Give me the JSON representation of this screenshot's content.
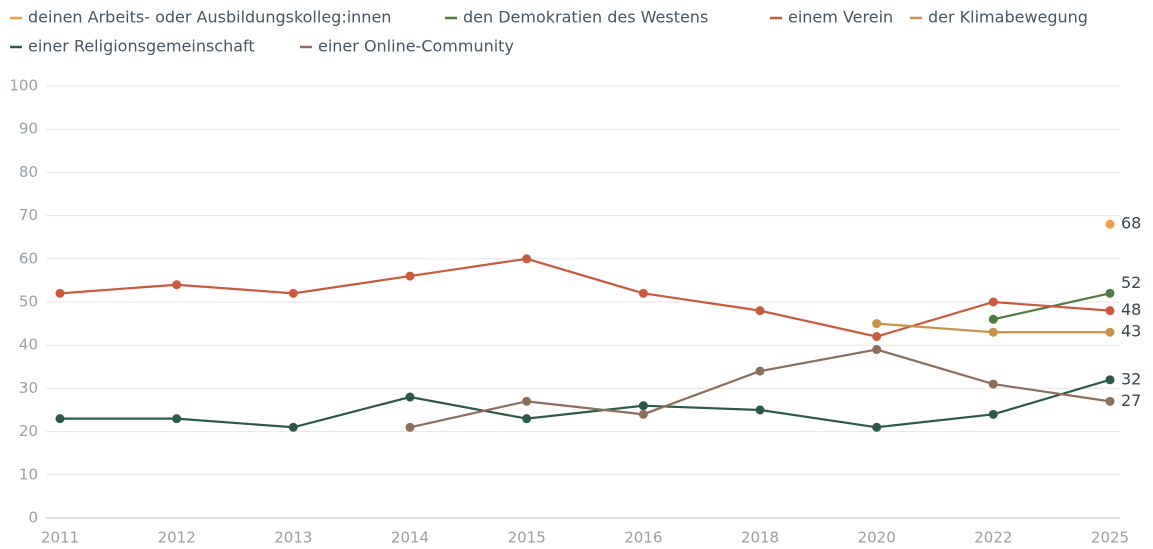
{
  "chart_data": {
    "type": "line",
    "categories": [
      "2011",
      "2012",
      "2013",
      "2014",
      "2015",
      "2016",
      "2018",
      "2020",
      "2022",
      "2025"
    ],
    "series": [
      {
        "name": "deinen Arbeits- oder Ausbildungskolleg:innen",
        "color": "#f29b4b",
        "values": [
          null,
          null,
          null,
          null,
          null,
          null,
          null,
          null,
          null,
          68
        ]
      },
      {
        "name": "den Demokratien des Westens",
        "color": "#4e7d3f",
        "values": [
          null,
          null,
          null,
          null,
          null,
          null,
          null,
          null,
          46,
          52
        ]
      },
      {
        "name": "einem Verein",
        "color": "#c95a3c",
        "values": [
          52,
          54,
          52,
          56,
          60,
          52,
          48,
          42,
          50,
          48
        ]
      },
      {
        "name": "der Klimabewegung",
        "color": "#c8924a",
        "values": [
          null,
          null,
          null,
          null,
          null,
          null,
          null,
          45,
          43,
          43
        ]
      },
      {
        "name": "einer Religionsgemeinschaft",
        "color": "#2d5a48",
        "values": [
          23,
          23,
          21,
          28,
          23,
          26,
          25,
          21,
          24,
          32
        ]
      },
      {
        "name": "einer Online-Community",
        "color": "#8c6e5b",
        "values": [
          null,
          null,
          null,
          21,
          27,
          24,
          34,
          39,
          31,
          27
        ]
      }
    ],
    "ylim": [
      0,
      100
    ],
    "yticks": [
      0,
      10,
      20,
      30,
      40,
      50,
      60,
      70,
      80,
      90,
      100
    ],
    "grid": true
  }
}
